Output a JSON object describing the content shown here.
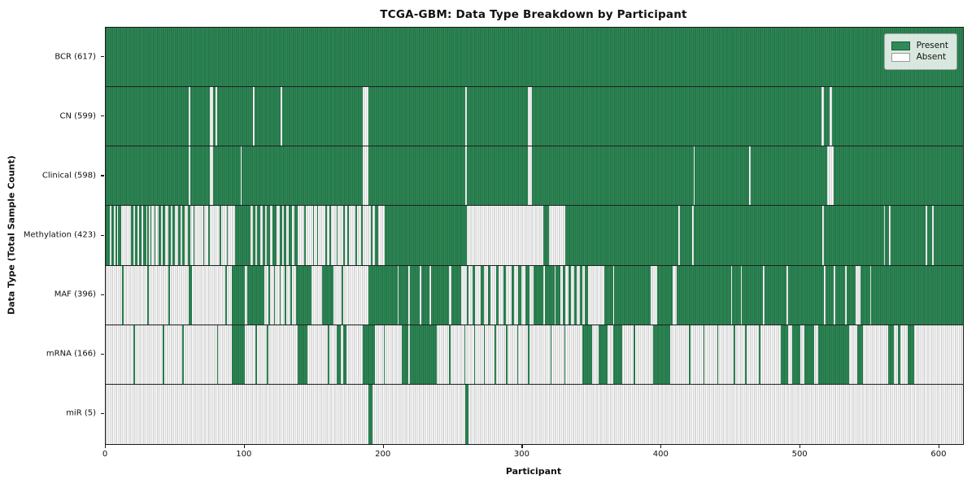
{
  "title": "TCGA-GBM: Data Type Breakdown by Participant",
  "xlabel": "Participant",
  "ylabel": "Data Type (Total Sample Count)",
  "legend": {
    "present_label": "Present",
    "absent_label": "Absent"
  },
  "colors": {
    "present": "#2e8b57",
    "absent": "#ffffff",
    "edge": "#1d5c38",
    "axis": "#1a1a1a"
  },
  "chart_data": {
    "type": "heatmap",
    "subtype": "presence-absence matrix (1 = Present, 0 = Absent)",
    "title": "TCGA-GBM: Data Type Breakdown by Participant",
    "xlabel": "Participant",
    "ylabel": "Data Type (Total Sample Count)",
    "legend_entries": [
      "Present",
      "Absent"
    ],
    "legend_position": "upper right",
    "grid": false,
    "n_participants": 617,
    "xlim": [
      0,
      617
    ],
    "x_ticks": [
      0,
      100,
      200,
      300,
      400,
      500,
      600
    ],
    "categories": [
      "BCR (617)",
      "CN (599)",
      "Clinical (598)",
      "Methylation (423)",
      "MAF (396)",
      "mRNA (166)",
      "miR (5)"
    ],
    "rows": [
      {
        "name": "BCR",
        "label": "BCR (617)",
        "present_count": 617,
        "absent_ranges": []
      },
      {
        "name": "CN",
        "label": "CN (599)",
        "present_count": 599,
        "absent_ranges": [
          [
            60,
            61
          ],
          [
            75,
            77
          ],
          [
            79,
            80
          ],
          [
            106,
            107
          ],
          [
            126,
            127
          ],
          [
            185,
            189
          ],
          [
            259,
            260
          ],
          [
            304,
            307
          ],
          [
            515,
            517
          ],
          [
            521,
            523
          ]
        ]
      },
      {
        "name": "Clinical",
        "label": "Clinical (598)",
        "present_count": 598,
        "absent_ranges": [
          [
            60,
            61
          ],
          [
            75,
            77
          ],
          [
            97,
            98
          ],
          [
            185,
            189
          ],
          [
            259,
            260
          ],
          [
            304,
            307
          ],
          [
            423,
            424
          ],
          [
            463,
            464
          ],
          [
            519,
            524
          ]
        ]
      },
      {
        "name": "Methylation",
        "label": "Methylation (423)",
        "present_count": 423,
        "absent_ranges": [
          [
            3,
            4
          ],
          [
            6,
            7
          ],
          [
            8,
            9
          ],
          [
            11,
            18
          ],
          [
            20,
            21
          ],
          [
            23,
            24
          ],
          [
            26,
            27
          ],
          [
            29,
            30
          ],
          [
            31,
            32
          ],
          [
            33,
            35
          ],
          [
            36,
            38
          ],
          [
            40,
            41
          ],
          [
            43,
            45
          ],
          [
            47,
            48
          ],
          [
            50,
            52
          ],
          [
            54,
            55
          ],
          [
            57,
            59
          ],
          [
            61,
            63
          ],
          [
            64,
            70
          ],
          [
            71,
            74
          ],
          [
            75,
            82
          ],
          [
            83,
            87
          ],
          [
            88,
            93
          ],
          [
            104,
            106
          ],
          [
            108,
            109
          ],
          [
            111,
            113
          ],
          [
            115,
            116
          ],
          [
            118,
            120
          ],
          [
            123,
            125
          ],
          [
            127,
            128
          ],
          [
            130,
            132
          ],
          [
            134,
            136
          ],
          [
            138,
            143
          ],
          [
            144,
            149
          ],
          [
            150,
            152
          ],
          [
            153,
            158
          ],
          [
            159,
            161
          ],
          [
            162,
            166
          ],
          [
            167,
            171
          ],
          [
            172,
            174
          ],
          [
            175,
            180
          ],
          [
            181,
            184
          ],
          [
            185,
            191
          ],
          [
            192,
            194
          ],
          [
            196,
            201
          ],
          [
            260,
            315
          ],
          [
            319,
            331
          ],
          [
            412,
            413
          ],
          [
            422,
            423
          ],
          [
            516,
            517
          ],
          [
            560,
            561
          ],
          [
            564,
            565
          ],
          [
            590,
            591
          ],
          [
            595,
            596
          ]
        ]
      },
      {
        "name": "MAF",
        "label": "MAF (396)",
        "present_count": 396,
        "absent_ranges": [
          [
            0,
            12
          ],
          [
            13,
            30
          ],
          [
            31,
            45
          ],
          [
            46,
            60
          ],
          [
            62,
            86
          ],
          [
            87,
            91
          ],
          [
            100,
            102
          ],
          [
            114,
            117
          ],
          [
            118,
            121
          ],
          [
            122,
            125
          ],
          [
            126,
            129
          ],
          [
            130,
            133
          ],
          [
            134,
            137
          ],
          [
            148,
            156
          ],
          [
            164,
            170
          ],
          [
            171,
            189
          ],
          [
            210,
            211
          ],
          [
            218,
            219
          ],
          [
            226,
            227
          ],
          [
            233,
            234
          ],
          [
            247,
            249
          ],
          [
            256,
            260
          ],
          [
            261,
            264
          ],
          [
            266,
            270
          ],
          [
            272,
            275
          ],
          [
            277,
            281
          ],
          [
            283,
            286
          ],
          [
            288,
            292
          ],
          [
            294,
            297
          ],
          [
            299,
            302
          ],
          [
            305,
            308
          ],
          [
            315,
            316
          ],
          [
            323,
            324
          ],
          [
            327,
            329
          ],
          [
            331,
            333
          ],
          [
            335,
            337
          ],
          [
            339,
            341
          ],
          [
            343,
            345
          ],
          [
            347,
            359
          ],
          [
            365,
            366
          ],
          [
            392,
            397
          ],
          [
            408,
            411
          ],
          [
            450,
            451
          ],
          [
            457,
            458
          ],
          [
            473,
            474
          ],
          [
            490,
            491
          ],
          [
            517,
            518
          ],
          [
            524,
            525
          ],
          [
            532,
            533
          ],
          [
            540,
            543
          ],
          [
            550,
            551
          ]
        ]
      },
      {
        "name": "mRNA",
        "label": "mRNA (166)",
        "present_count": 166,
        "present_ranges": [
          [
            20,
            21
          ],
          [
            41,
            42
          ],
          [
            55,
            56
          ],
          [
            80,
            81
          ],
          [
            91,
            100
          ],
          [
            108,
            109
          ],
          [
            116,
            117
          ],
          [
            138,
            145
          ],
          [
            160,
            161
          ],
          [
            166,
            169
          ],
          [
            171,
            173
          ],
          [
            185,
            194
          ],
          [
            200,
            201
          ],
          [
            213,
            218
          ],
          [
            219,
            238
          ],
          [
            247,
            248
          ],
          [
            258,
            259
          ],
          [
            265,
            266
          ],
          [
            272,
            273
          ],
          [
            280,
            281
          ],
          [
            288,
            289
          ],
          [
            296,
            297
          ],
          [
            304,
            305
          ],
          [
            320,
            321
          ],
          [
            330,
            331
          ],
          [
            343,
            350
          ],
          [
            355,
            361
          ],
          [
            365,
            372
          ],
          [
            380,
            381
          ],
          [
            394,
            406
          ],
          [
            420,
            421
          ],
          [
            430,
            431
          ],
          [
            440,
            441
          ],
          [
            452,
            453
          ],
          [
            460,
            461
          ],
          [
            470,
            471
          ],
          [
            486,
            491
          ],
          [
            494,
            500
          ],
          [
            503,
            510
          ],
          [
            513,
            535
          ],
          [
            541,
            545
          ],
          [
            563,
            567
          ],
          [
            570,
            572
          ],
          [
            577,
            582
          ]
        ]
      },
      {
        "name": "miR",
        "label": "miR (5)",
        "present_count": 5,
        "present_ranges": [
          [
            189,
            192
          ],
          [
            259,
            261
          ]
        ]
      }
    ]
  }
}
